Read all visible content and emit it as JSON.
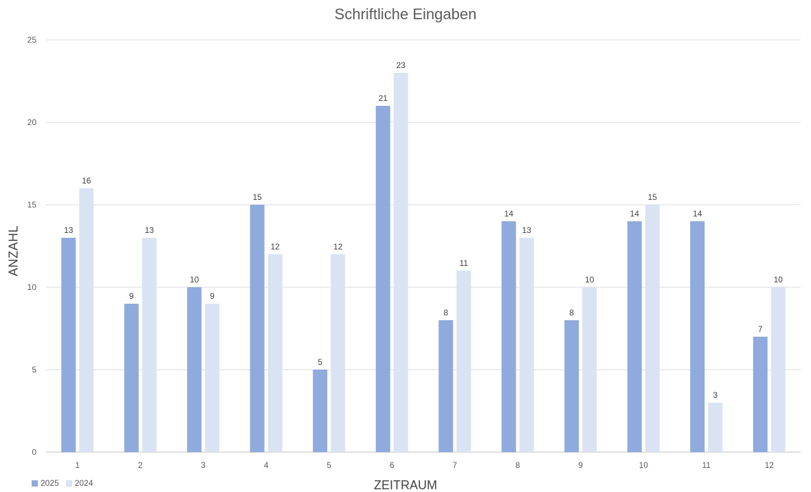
{
  "chart_data": {
    "type": "bar",
    "title": "Schriftliche Eingaben",
    "xlabel": "ZEITRAUM",
    "ylabel": "ANZAHL",
    "categories": [
      "1",
      "2",
      "3",
      "4",
      "5",
      "6",
      "7",
      "8",
      "9",
      "10",
      "11",
      "12"
    ],
    "series": [
      {
        "name": "2025",
        "color": "#8faadc",
        "values": [
          13,
          9,
          10,
          15,
          5,
          21,
          8,
          14,
          8,
          14,
          14,
          7
        ]
      },
      {
        "name": "2024",
        "color": "#dae3f3",
        "values": [
          16,
          13,
          9,
          12,
          12,
          23,
          11,
          13,
          10,
          15,
          3,
          10
        ]
      }
    ],
    "ylim": [
      0,
      25
    ],
    "yticks": [
      0,
      5,
      10,
      15,
      20,
      25
    ],
    "grid": true,
    "legend_position": "bottom-left",
    "data_labels": true
  }
}
